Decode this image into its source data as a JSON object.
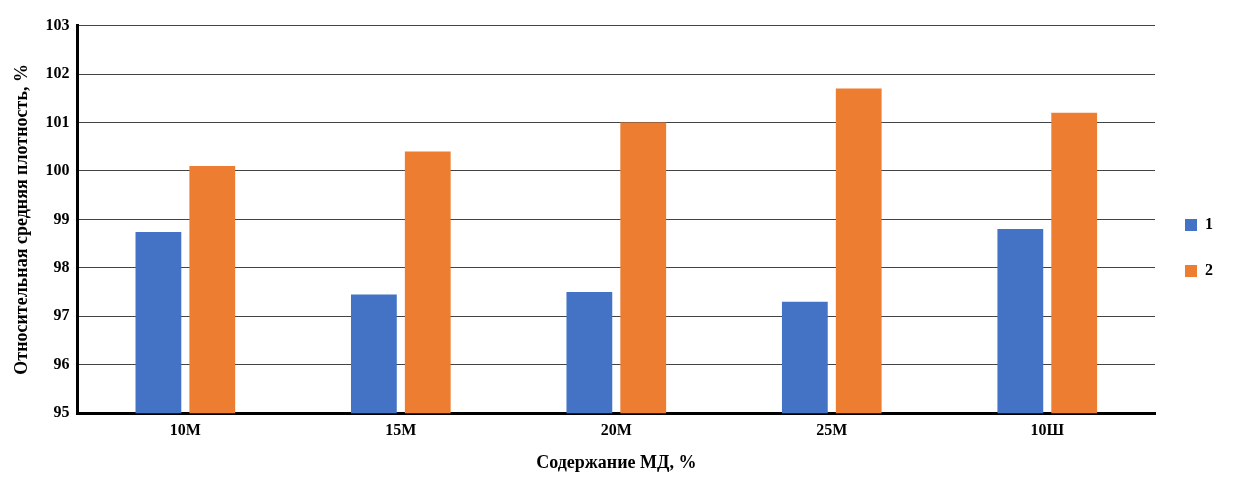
{
  "chart_data": {
    "type": "bar",
    "xlabel": "Содержание МД, %",
    "ylabel": "Относительная средняя плотность, %",
    "categories": [
      "10М",
      "15М",
      "20М",
      "25М",
      "10Ш"
    ],
    "series": [
      {
        "name": "1",
        "color": "#4472c4",
        "values": [
          98.74,
          97.45,
          97.5,
          97.3,
          98.8
        ]
      },
      {
        "name": "2",
        "color": "#ed7d31",
        "values": [
          100.1,
          100.4,
          101.0,
          101.7,
          101.2
        ]
      }
    ],
    "ylim": [
      95,
      103
    ],
    "yticks": [
      95,
      96,
      97,
      98,
      99,
      100,
      101,
      102,
      103
    ],
    "grid": "y",
    "legend": "right"
  }
}
